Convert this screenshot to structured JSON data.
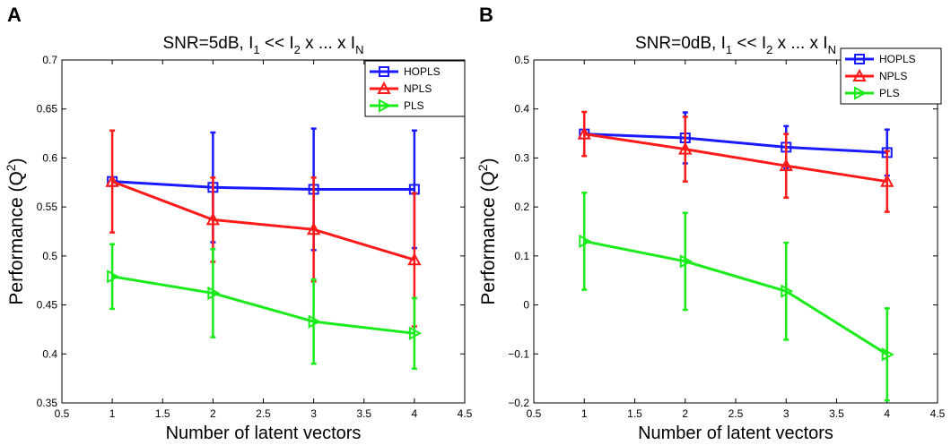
{
  "chart_data": [
    {
      "type": "line",
      "panel_letter": "A",
      "title": {
        "main": "SNR=5dB, I",
        "s1": "1",
        "mid1": " << I",
        "s2": "2",
        "mid2": " x ... x I",
        "s3": "N"
      },
      "xlabel": "Number of latent vectors",
      "ylabel": {
        "main": "Performance (Q",
        "sup": "2",
        "tail": ")"
      },
      "xlim": [
        0.5,
        4.5
      ],
      "ylim": [
        0.35,
        0.7
      ],
      "xticks": [
        0.5,
        1,
        1.5,
        2,
        2.5,
        3,
        3.5,
        4,
        4.5
      ],
      "yticks": [
        0.35,
        0.4,
        0.45,
        0.5,
        0.55,
        0.6,
        0.65,
        0.7
      ],
      "xticklabels": [
        "0.5",
        "1",
        "1.5",
        "2",
        "2.5",
        "3",
        "3.5",
        "4",
        "4.5"
      ],
      "yticklabels": [
        "0.35",
        "0.4",
        "0.45",
        "0.5",
        "0.55",
        "0.6",
        "0.65",
        "0.7"
      ],
      "grid": false,
      "legend_position": "top-right",
      "x": [
        1,
        2,
        3,
        4
      ],
      "series": [
        {
          "name": "HOPLS",
          "color": "#1a1aff",
          "marker": "square",
          "values": [
            0.576,
            0.57,
            0.568,
            0.568
          ],
          "err": [
            0.0,
            0.056,
            0.062,
            0.06
          ]
        },
        {
          "name": "NPLS",
          "color": "#ff1a1a",
          "marker": "triangle-up",
          "values": [
            0.576,
            0.537,
            0.527,
            0.496
          ],
          "err": [
            0.052,
            0.043,
            0.053,
            0.068
          ]
        },
        {
          "name": "PLS",
          "color": "#1aeb1a",
          "marker": "triangle-right",
          "values": [
            0.479,
            0.462,
            0.433,
            0.421
          ],
          "err": [
            0.033,
            0.045,
            0.043,
            0.036
          ]
        }
      ]
    },
    {
      "type": "line",
      "panel_letter": "B",
      "title": {
        "main": "SNR=0dB, I",
        "s1": "1",
        "mid1": " << I",
        "s2": "2",
        "mid2": " x ... x I",
        "s3": "N"
      },
      "xlabel": "Number of latent vectors",
      "ylabel": {
        "main": "Performance (Q",
        "sup": "2",
        "tail": ")"
      },
      "xlim": [
        0.5,
        4.5
      ],
      "ylim": [
        -0.2,
        0.5
      ],
      "xticks": [
        0.5,
        1,
        1.5,
        2,
        2.5,
        3,
        3.5,
        4,
        4.5
      ],
      "yticks": [
        -0.2,
        -0.1,
        0,
        0.1,
        0.2,
        0.3,
        0.4,
        0.5
      ],
      "xticklabels": [
        "0.5",
        "1",
        "1.5",
        "2",
        "2.5",
        "3",
        "3.5",
        "4",
        "4.5"
      ],
      "yticklabels": [
        "−0.2",
        "−0.1",
        "0",
        "0.1",
        "0.2",
        "0.3",
        "0.4",
        "0.5"
      ],
      "grid": false,
      "legend_position": "top-right",
      "x": [
        1,
        2,
        3,
        4
      ],
      "series": [
        {
          "name": "HOPLS",
          "color": "#1a1aff",
          "marker": "square",
          "values": [
            0.349,
            0.341,
            0.322,
            0.311
          ],
          "err": [
            0.0,
            0.052,
            0.043,
            0.047
          ]
        },
        {
          "name": "NPLS",
          "color": "#ff1a1a",
          "marker": "triangle-up",
          "values": [
            0.349,
            0.318,
            0.284,
            0.252
          ],
          "err": [
            0.045,
            0.066,
            0.065,
            0.062
          ]
        },
        {
          "name": "PLS",
          "color": "#1aeb1a",
          "marker": "triangle-right",
          "values": [
            0.13,
            0.089,
            0.028,
            -0.101
          ],
          "err": [
            0.099,
            0.099,
            0.099,
            0.094
          ]
        }
      ]
    }
  ]
}
